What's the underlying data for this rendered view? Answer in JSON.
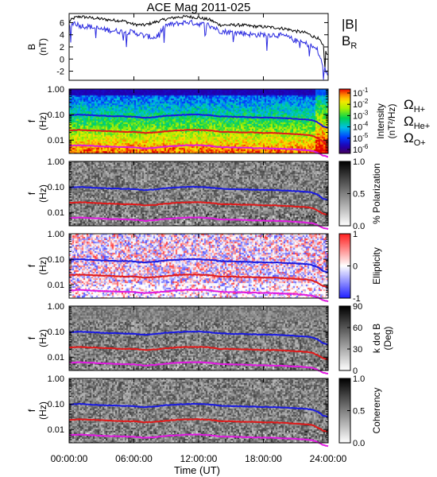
{
  "chart_data": {
    "type": "multi-panel",
    "title": "ACE Mag 2011-025",
    "xlabel": "Time (UT)",
    "x_ticks": [
      "00:00:00",
      "06:00:00",
      "12:00:00",
      "18:00:00",
      "24:00:00"
    ],
    "x_range_hours": [
      0,
      24
    ],
    "panel_b": {
      "type": "line",
      "ylabel": "B",
      "yunit": "(nT)",
      "y_ticks": [
        "6",
        "4",
        "2",
        "0",
        "-2"
      ],
      "ylim": [
        -3.5,
        7.5
      ],
      "series": [
        {
          "name": "|B|",
          "color": "#000000",
          "x": [
            0,
            0.5,
            1,
            2,
            3,
            4,
            5,
            6,
            7,
            8,
            9,
            10,
            11,
            12,
            13,
            14,
            15,
            16,
            17,
            18,
            19,
            20,
            21,
            22,
            22.5,
            23,
            23.5,
            24
          ],
          "y": [
            6.2,
            6.8,
            7.0,
            6.8,
            6.6,
            6.4,
            6.3,
            5.7,
            5.6,
            6.1,
            6.6,
            6.9,
            7.0,
            6.8,
            6.5,
            5.6,
            5.6,
            5.6,
            5.4,
            5.3,
            5.2,
            5.0,
            4.6,
            4.3,
            3.8,
            3.5,
            2.5,
            0.5
          ]
        },
        {
          "name": "B_R",
          "color": "#2a2ae0",
          "x": [
            0,
            0.5,
            1,
            2,
            3,
            4,
            5,
            6,
            7,
            8,
            9,
            10,
            11,
            12,
            13,
            14,
            15,
            16,
            17,
            18,
            19,
            20,
            21,
            22,
            22.5,
            23,
            23.5,
            24
          ],
          "y": [
            5.5,
            6.0,
            5.5,
            5.3,
            4.9,
            4.7,
            4.5,
            4.4,
            3.8,
            3.5,
            5.6,
            5.8,
            6.1,
            5.8,
            5.6,
            4.6,
            4.4,
            4.3,
            4.0,
            4.0,
            4.0,
            3.8,
            3.0,
            2.5,
            2.1,
            1.5,
            -1.0,
            -2.5
          ]
        }
      ]
    },
    "freq_axis": {
      "ylabel": "f",
      "yunit": "(Hz)",
      "y_ticks": [
        "1.00",
        "0.10",
        "0.01"
      ],
      "ylim_hz": [
        0.003,
        1.0
      ],
      "scale": "log"
    },
    "gyro_lines": {
      "x": [
        0,
        1,
        2,
        3,
        4,
        5,
        6,
        7,
        8,
        9,
        10,
        11,
        12,
        13,
        14,
        15,
        16,
        17,
        18,
        19,
        20,
        21,
        22,
        22.5,
        23,
        23.5,
        24
      ],
      "H+": [
        0.095,
        0.1,
        0.095,
        0.09,
        0.087,
        0.085,
        0.082,
        0.075,
        0.08,
        0.09,
        0.095,
        0.1,
        0.1,
        0.095,
        0.085,
        0.082,
        0.081,
        0.078,
        0.076,
        0.075,
        0.072,
        0.068,
        0.064,
        0.06,
        0.05,
        0.035,
        0.03
      ],
      "He+": [
        0.024,
        0.025,
        0.024,
        0.023,
        0.022,
        0.021,
        0.021,
        0.019,
        0.02,
        0.022,
        0.024,
        0.025,
        0.025,
        0.024,
        0.021,
        0.021,
        0.02,
        0.02,
        0.019,
        0.019,
        0.018,
        0.017,
        0.016,
        0.015,
        0.012,
        0.009,
        0.008
      ],
      "O+": [
        0.006,
        0.0063,
        0.006,
        0.0057,
        0.0055,
        0.0053,
        0.0052,
        0.0047,
        0.005,
        0.0056,
        0.006,
        0.0063,
        0.0063,
        0.006,
        0.0053,
        0.0052,
        0.0051,
        0.0049,
        0.0048,
        0.0047,
        0.0045,
        0.0043,
        0.004,
        0.0038,
        0.0032,
        0.0025,
        0.0022
      ]
    },
    "legend_b": [
      {
        "label": "|B|",
        "color": "#000000"
      },
      {
        "label": "B",
        "sub": "R",
        "color": "#2a2ae0"
      }
    ],
    "legend_ions": [
      {
        "label": "Ω",
        "sub": "H+",
        "color": "#1a1ae0"
      },
      {
        "label": "Ω",
        "sub": "He+",
        "color": "#e01a1a"
      },
      {
        "label": "Ω",
        "sub": "O+",
        "color": "#e01ae0"
      }
    ],
    "spectrogram_panels": [
      {
        "name": "intensity",
        "colormap": "rainbow",
        "colorbar_label": "Intensity",
        "colorbar_unit": "(nT²/Hz)",
        "colorbar_ticks": [
          {
            "base": "10",
            "exp": "-1"
          },
          {
            "base": "10",
            "exp": "-2"
          },
          {
            "base": "10",
            "exp": "-3"
          },
          {
            "base": "10",
            "exp": "-4"
          },
          {
            "base": "10",
            "exp": "-5"
          },
          {
            "base": "10",
            "exp": "-6"
          }
        ]
      },
      {
        "name": "polarization",
        "colormap": "gray",
        "colorbar_label": "% Polarization",
        "colorbar_unit": "",
        "colorbar_ticks": [
          {
            "base": "1.0"
          },
          {
            "base": "0.5"
          },
          {
            "base": "0.0"
          }
        ]
      },
      {
        "name": "ellipticity",
        "colormap": "bwr",
        "colorbar_label": "Ellipticity",
        "colorbar_unit": "",
        "colorbar_ticks": [
          {
            "base": "1"
          },
          {
            "base": "0"
          },
          {
            "base": "-1"
          }
        ]
      },
      {
        "name": "kdotb",
        "colormap": "gray",
        "colorbar_label": "k dot B",
        "colorbar_unit": "(Deg)",
        "colorbar_ticks": [
          {
            "base": "90"
          },
          {
            "base": "60"
          },
          {
            "base": "30"
          },
          {
            "base": "0"
          }
        ]
      },
      {
        "name": "coherency",
        "colormap": "gray",
        "colorbar_label": "Coherency",
        "colorbar_unit": "",
        "colorbar_ticks": [
          {
            "base": "1.0"
          },
          {
            "base": "0.5"
          },
          {
            "base": "0.0"
          }
        ]
      }
    ]
  }
}
